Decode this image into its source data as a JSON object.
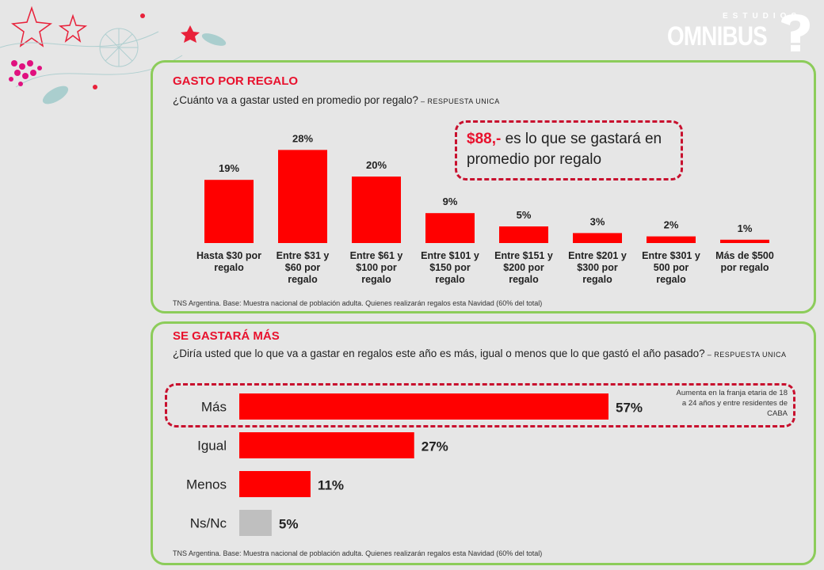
{
  "logo": {
    "small": "ESTUDIOS",
    "big": "OMNIBUS"
  },
  "section1": {
    "title": "GASTO POR REGALO",
    "question": "¿Cuánto va a gastar usted en promedio por regalo?",
    "question_suffix": " – RESPUESTA UNICA",
    "callout_highlight": "$88,-",
    "callout_text": " es lo que se gastará en promedio por regalo",
    "source": "TNS Argentina. Base: Muestra nacional de población adulta. Quienes realizarán regalos esta Navidad (60% del total)"
  },
  "section2": {
    "title": "SE GASTARÁ MÁS",
    "question": "¿Diría usted que lo que va a gastar en regalos este año es más, igual o menos que lo que gastó el año pasado?",
    "question_suffix": " – RESPUESTA UNICA",
    "note": "Aumenta en la franja etaria de 18 a 24 años y entre residentes de CABA",
    "source": "TNS Argentina. Base: Muestra nacional de población adulta. Quienes realizarán regalos esta Navidad (60% del total)"
  },
  "chart_data": [
    {
      "type": "bar",
      "orientation": "vertical",
      "categories": [
        [
          "Hasta $30 por",
          "regalo"
        ],
        [
          "Entre $31 y",
          "$60 por",
          "regalo"
        ],
        [
          "Entre $61 y",
          "$100 por",
          "regalo"
        ],
        [
          "Entre $101 y",
          "$150 por",
          "regalo"
        ],
        [
          "Entre $151 y",
          "$200 por",
          "regalo"
        ],
        [
          "Entre $201 y",
          "$300 por",
          "regalo"
        ],
        [
          "Entre $301 y",
          "500 por",
          "regalo"
        ],
        [
          "Más de $500",
          "por regalo"
        ]
      ],
      "values": [
        19,
        28,
        20,
        9,
        5,
        3,
        2,
        1
      ],
      "labels": [
        "19%",
        "28%",
        "20%",
        "9%",
        "5%",
        "3%",
        "2%",
        "1%"
      ],
      "bar_color": "#ff0000",
      "ylim": [
        0,
        30
      ]
    },
    {
      "type": "bar",
      "orientation": "horizontal",
      "categories": [
        "Más",
        "Igual",
        "Menos",
        "Ns/Nc"
      ],
      "values": [
        57,
        27,
        11,
        5
      ],
      "labels": [
        "57%",
        "27%",
        "11%",
        "5%"
      ],
      "colors": [
        "#ff0000",
        "#ff0000",
        "#ff0000",
        "#bfbfbf"
      ],
      "xlim": [
        0,
        57
      ]
    }
  ]
}
